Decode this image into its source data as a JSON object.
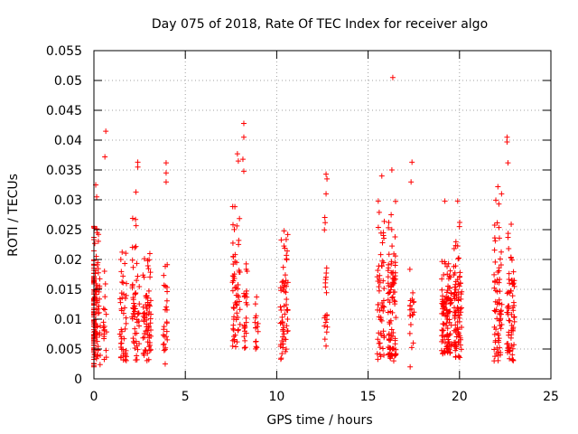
{
  "chart_data": {
    "type": "scatter",
    "title": "Day 075 of 2018, Rate Of TEC Index for receiver algo",
    "xlabel": "GPS time / hours",
    "ylabel": "ROTI / TECUs",
    "xlim": [
      0,
      25
    ],
    "ylim": [
      0,
      0.055
    ],
    "xticks": [
      0,
      5,
      10,
      15,
      20,
      25
    ],
    "xtick_labels": [
      "0",
      "5",
      "10",
      "15",
      "20",
      "25"
    ],
    "yticks": [
      0,
      0.005,
      0.01,
      0.015,
      0.02,
      0.025,
      0.03,
      0.035,
      0.04,
      0.045,
      0.05,
      0.055
    ],
    "ytick_labels": [
      "0",
      "0.005",
      "0.01",
      "0.015",
      "0.02",
      "0.025",
      "0.03",
      "0.035",
      "0.04",
      "0.045",
      "0.05",
      "0.055"
    ],
    "grid": true,
    "marker": "+",
    "series_color": "#ff0000",
    "clusters": [
      {
        "x": 0.0,
        "x_spread": 0.35,
        "y_min": 0.002,
        "y_max": 0.026,
        "count": 150,
        "seed": 11
      },
      {
        "x": 0.6,
        "x_spread": 0.1,
        "y_min": 0.003,
        "y_max": 0.02,
        "count": 18,
        "seed": 12
      },
      {
        "x": 1.6,
        "x_spread": 0.18,
        "y_min": 0.003,
        "y_max": 0.022,
        "count": 45,
        "seed": 13
      },
      {
        "x": 2.3,
        "x_spread": 0.22,
        "y_min": 0.003,
        "y_max": 0.027,
        "count": 55,
        "seed": 14
      },
      {
        "x": 2.9,
        "x_spread": 0.22,
        "y_min": 0.003,
        "y_max": 0.022,
        "count": 70,
        "seed": 15
      },
      {
        "x": 3.9,
        "x_spread": 0.12,
        "y_min": 0.004,
        "y_max": 0.02,
        "count": 25,
        "seed": 16
      },
      {
        "x": 7.8,
        "x_spread": 0.22,
        "y_min": 0.005,
        "y_max": 0.029,
        "count": 60,
        "seed": 17
      },
      {
        "x": 8.3,
        "x_spread": 0.1,
        "y_min": 0.005,
        "y_max": 0.021,
        "count": 25,
        "seed": 18
      },
      {
        "x": 8.9,
        "x_spread": 0.1,
        "y_min": 0.005,
        "y_max": 0.014,
        "count": 15,
        "seed": 19
      },
      {
        "x": 10.4,
        "x_spread": 0.22,
        "y_min": 0.003,
        "y_max": 0.025,
        "count": 60,
        "seed": 20
      },
      {
        "x": 12.7,
        "x_spread": 0.12,
        "y_min": 0.004,
        "y_max": 0.028,
        "count": 20,
        "seed": 21
      },
      {
        "x": 15.7,
        "x_spread": 0.2,
        "y_min": 0.003,
        "y_max": 0.03,
        "count": 55,
        "seed": 22
      },
      {
        "x": 16.3,
        "x_spread": 0.22,
        "y_min": 0.003,
        "y_max": 0.03,
        "count": 95,
        "seed": 23
      },
      {
        "x": 17.4,
        "x_spread": 0.12,
        "y_min": 0.005,
        "y_max": 0.02,
        "count": 20,
        "seed": 24
      },
      {
        "x": 19.3,
        "x_spread": 0.28,
        "y_min": 0.004,
        "y_max": 0.02,
        "count": 110,
        "seed": 25
      },
      {
        "x": 19.9,
        "x_spread": 0.22,
        "y_min": 0.003,
        "y_max": 0.028,
        "count": 90,
        "seed": 26
      },
      {
        "x": 22.1,
        "x_spread": 0.22,
        "y_min": 0.003,
        "y_max": 0.03,
        "count": 70,
        "seed": 27
      },
      {
        "x": 22.8,
        "x_spread": 0.22,
        "y_min": 0.003,
        "y_max": 0.026,
        "count": 70,
        "seed": 28
      }
    ],
    "points": [
      [
        0.65,
        0.0415
      ],
      [
        0.6,
        0.0372
      ],
      [
        2.4,
        0.0363
      ],
      [
        2.4,
        0.0355
      ],
      [
        2.3,
        0.0313
      ],
      [
        3.95,
        0.0362
      ],
      [
        3.95,
        0.0345
      ],
      [
        3.95,
        0.033
      ],
      [
        7.85,
        0.0377
      ],
      [
        7.9,
        0.0365
      ],
      [
        8.2,
        0.0428
      ],
      [
        8.2,
        0.0405
      ],
      [
        8.15,
        0.0368
      ],
      [
        8.2,
        0.0348
      ],
      [
        12.7,
        0.0343
      ],
      [
        12.75,
        0.0335
      ],
      [
        12.7,
        0.031
      ],
      [
        16.35,
        0.0505
      ],
      [
        16.3,
        0.035
      ],
      [
        15.75,
        0.034
      ],
      [
        17.4,
        0.0363
      ],
      [
        17.35,
        0.033
      ],
      [
        17.3,
        0.002
      ],
      [
        22.6,
        0.0405
      ],
      [
        22.6,
        0.0397
      ],
      [
        22.65,
        0.0362
      ],
      [
        22.1,
        0.0322
      ],
      [
        22.3,
        0.031
      ],
      [
        0.1,
        0.0325
      ],
      [
        0.15,
        0.0305
      ],
      [
        10.4,
        0.0248
      ],
      [
        19.9,
        0.0298
      ],
      [
        19.2,
        0.0298
      ],
      [
        3.9,
        0.0025
      ],
      [
        12.7,
        0.0055
      ]
    ]
  }
}
